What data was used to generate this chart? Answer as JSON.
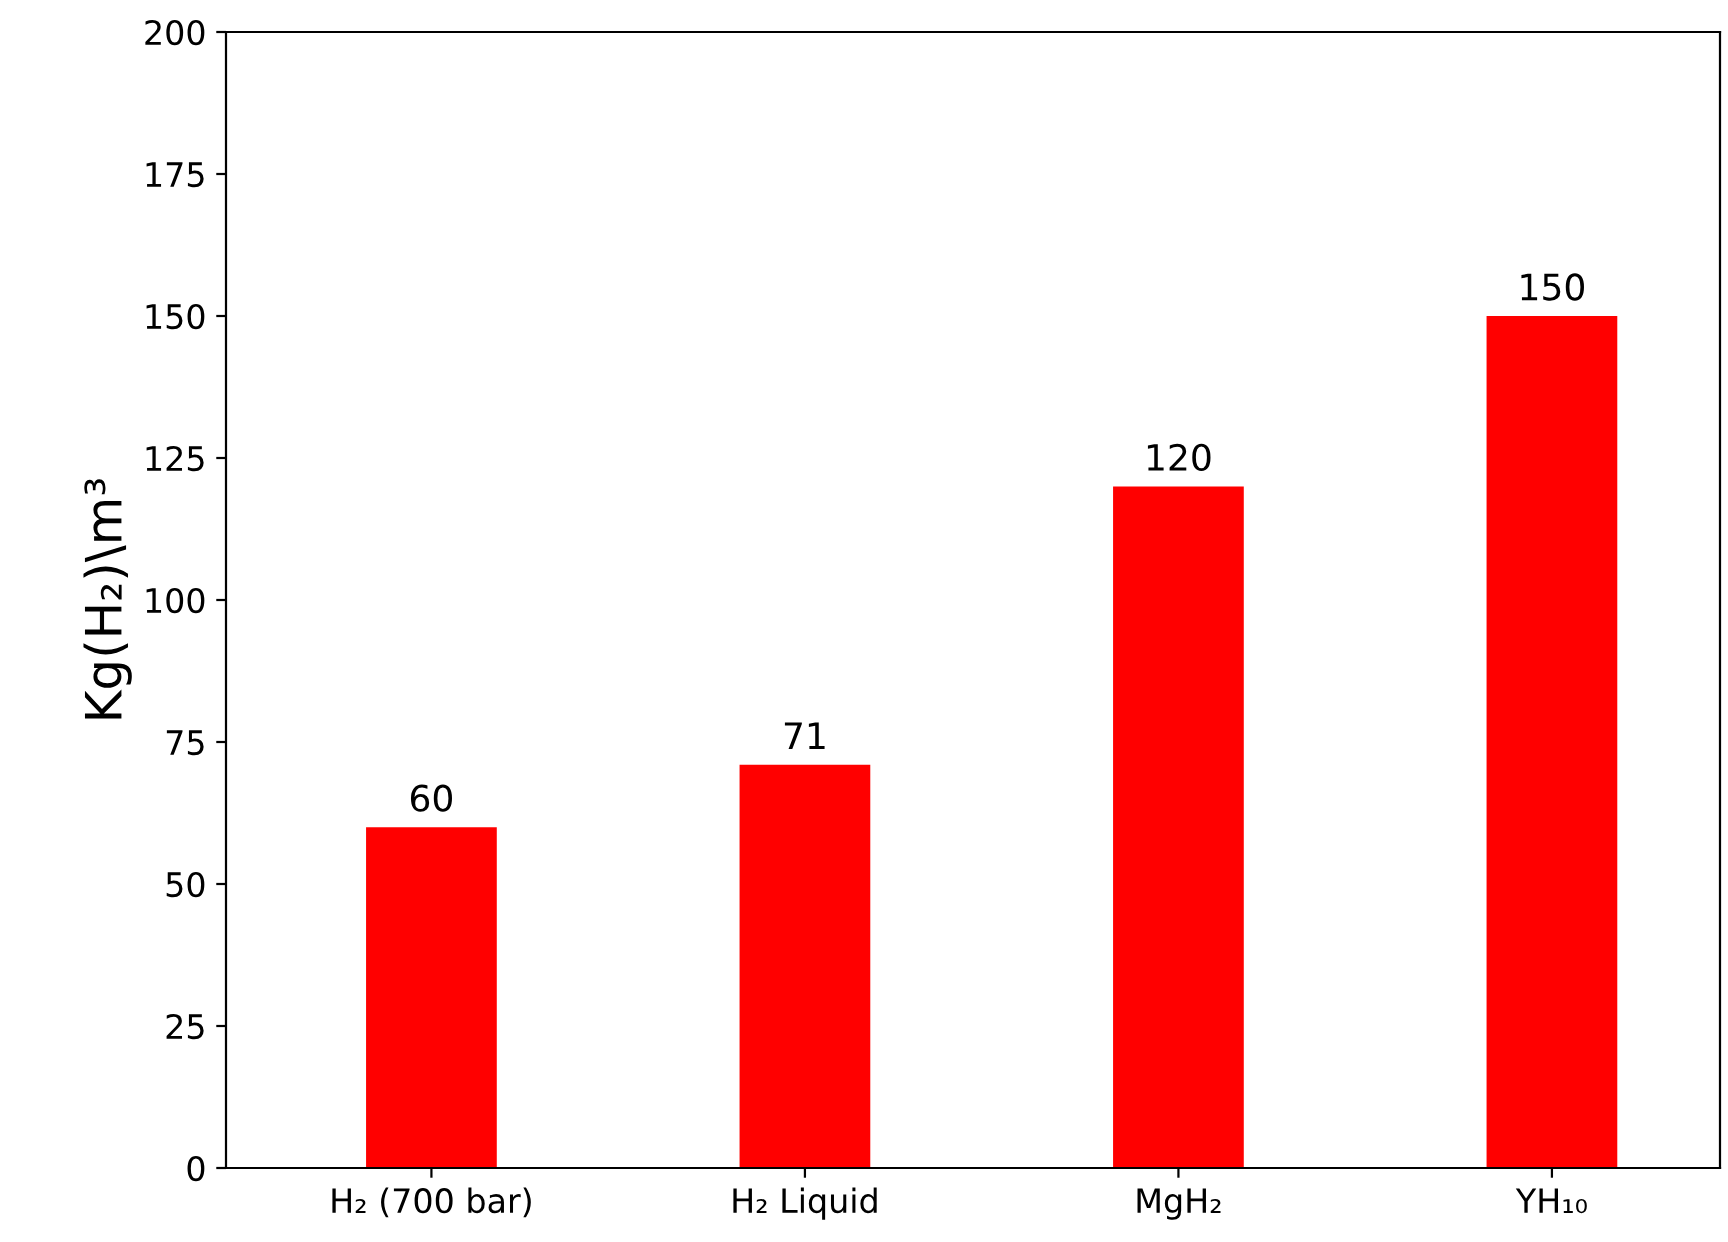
{
  "chart_data": {
    "type": "bar",
    "ylabel": "Kg(H₂)\\m³",
    "categories": [
      "H₂ (700 bar)",
      "H₂ Liquid",
      "MgH₂",
      "YH₁₀"
    ],
    "values": [
      60,
      71,
      120,
      150
    ],
    "color": "#ff0000",
    "ylim": [
      0,
      200
    ],
    "yticks": [
      0,
      25,
      50,
      75,
      100,
      125,
      150,
      175,
      200
    ],
    "data_labels": true,
    "grid": false,
    "legend": false
  }
}
